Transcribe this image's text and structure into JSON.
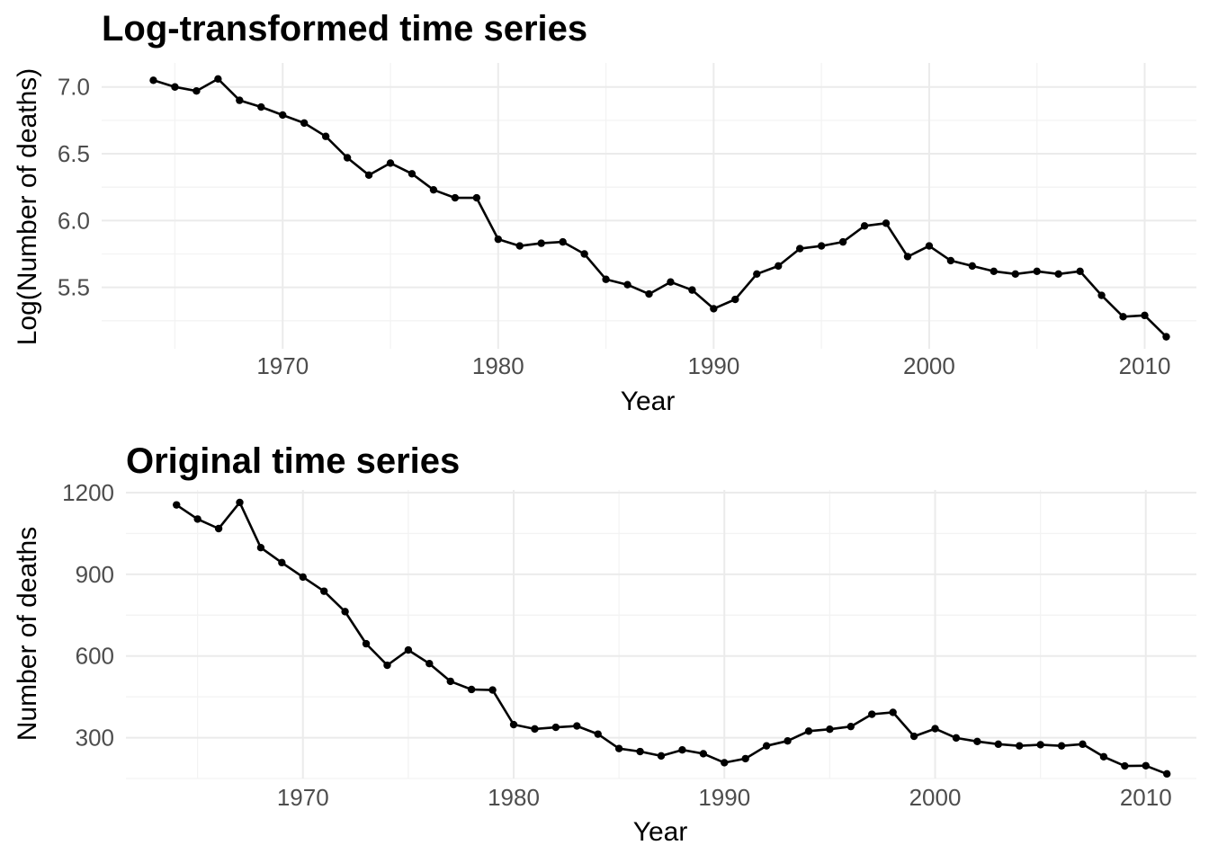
{
  "chart_data": [
    {
      "type": "line",
      "title": "Log-transformed time series",
      "xlabel": "Year",
      "ylabel": "Log(Number of deaths)",
      "xlim": [
        1961.6,
        2012.4
      ],
      "ylim": [
        5.04,
        7.18
      ],
      "x_ticks": [
        1970,
        1980,
        1990,
        2000,
        2010
      ],
      "y_ticks": [
        5.5,
        6.0,
        6.5,
        7.0
      ],
      "y_tick_labels": [
        "5.5",
        "6.0",
        "6.5",
        "7.0"
      ],
      "grid": true,
      "legend": "none",
      "line_color": "#000000",
      "x": [
        1964,
        1965,
        1966,
        1967,
        1968,
        1969,
        1970,
        1971,
        1972,
        1973,
        1974,
        1975,
        1976,
        1977,
        1978,
        1979,
        1980,
        1981,
        1982,
        1983,
        1984,
        1985,
        1986,
        1987,
        1988,
        1989,
        1990,
        1991,
        1992,
        1993,
        1994,
        1995,
        1996,
        1997,
        1998,
        1999,
        2000,
        2001,
        2002,
        2003,
        2004,
        2005,
        2006,
        2007,
        2008,
        2009,
        2010,
        2011
      ],
      "values": [
        7.05,
        7.0,
        6.97,
        7.06,
        6.9,
        6.85,
        6.79,
        6.73,
        6.63,
        6.47,
        6.34,
        6.43,
        6.35,
        6.23,
        6.17,
        6.17,
        5.86,
        5.81,
        5.83,
        5.84,
        5.75,
        5.56,
        5.52,
        5.45,
        5.54,
        5.48,
        5.34,
        5.41,
        5.6,
        5.66,
        5.79,
        5.81,
        5.84,
        5.96,
        5.98,
        5.73,
        5.81,
        5.7,
        5.66,
        5.62,
        5.6,
        5.62,
        5.6,
        5.62,
        5.44,
        5.28,
        5.29,
        5.13
      ]
    },
    {
      "type": "line",
      "title": "Original time series",
      "xlabel": "Year",
      "ylabel": "Number of deaths",
      "xlim": [
        1961.6,
        2012.4
      ],
      "ylim": [
        150,
        1210
      ],
      "x_ticks": [
        1970,
        1980,
        1990,
        2000,
        2010
      ],
      "y_ticks": [
        300,
        600,
        900,
        1200
      ],
      "y_tick_labels": [
        "300",
        "600",
        "900",
        "1200"
      ],
      "grid": true,
      "legend": "none",
      "line_color": "#000000",
      "x": [
        1964,
        1965,
        1966,
        1967,
        1968,
        1969,
        1970,
        1971,
        1972,
        1973,
        1974,
        1975,
        1976,
        1977,
        1978,
        1979,
        1980,
        1981,
        1982,
        1983,
        1984,
        1985,
        1986,
        1987,
        1988,
        1989,
        1990,
        1991,
        1992,
        1993,
        1994,
        1995,
        1996,
        1997,
        1998,
        1999,
        2000,
        2001,
        2002,
        2003,
        2004,
        2005,
        2006,
        2007,
        2008,
        2009,
        2010,
        2011
      ],
      "values": [
        1155,
        1103,
        1068,
        1164,
        998,
        943,
        890,
        838,
        763,
        645,
        566,
        622,
        572,
        507,
        477,
        475,
        348,
        332,
        338,
        343,
        313,
        260,
        249,
        233,
        255,
        241,
        208,
        223,
        270,
        288,
        324,
        331,
        341,
        386,
        393,
        305,
        333,
        299,
        286,
        276,
        270,
        274,
        270,
        276,
        230,
        196,
        197,
        167
      ]
    }
  ]
}
